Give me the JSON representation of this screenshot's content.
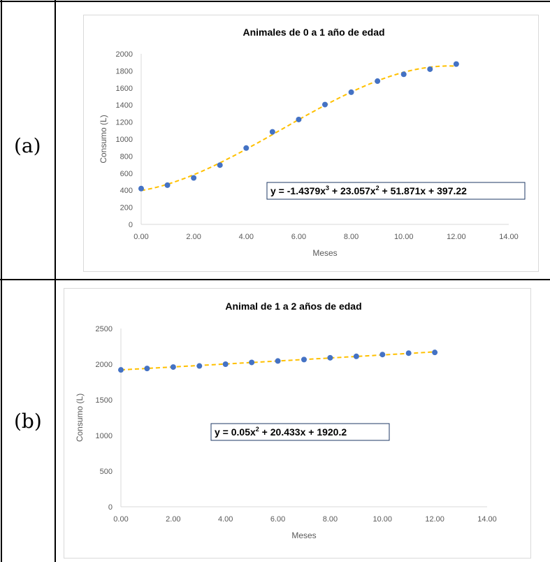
{
  "panels": [
    {
      "label": "(a)"
    },
    {
      "label": "(b)"
    }
  ],
  "colors": {
    "points": "#4472c4",
    "trendline": "#ffc000",
    "axis": "#d9d9d9",
    "text": "#595959"
  },
  "chart_data": [
    {
      "type": "scatter",
      "title": "Animales de 0 a 1 año de edad",
      "xlabel": "Meses",
      "ylabel": "Consumo (L)",
      "xlim": [
        0,
        14
      ],
      "ylim": [
        0,
        2000
      ],
      "x_ticks": [
        "0.00",
        "2.00",
        "4.00",
        "6.00",
        "8.00",
        "10.00",
        "12.00",
        "14.00"
      ],
      "y_ticks": [
        "0",
        "200",
        "400",
        "600",
        "800",
        "1000",
        "1200",
        "1400",
        "1600",
        "1800",
        "2000"
      ],
      "grid": false,
      "x": [
        0,
        1,
        2,
        3,
        4,
        5,
        6,
        7,
        8,
        9,
        10,
        11,
        12
      ],
      "values": [
        420,
        460,
        545,
        695,
        895,
        1085,
        1230,
        1405,
        1550,
        1680,
        1760,
        1820,
        1880
      ],
      "trendline": {
        "type": "polynomial",
        "coefficients": [
          397.22,
          51.871,
          23.057,
          -1.4379
        ]
      },
      "equation": {
        "prefix": "y = -1.4379x",
        "sup1": "3",
        "mid1": " + 23.057x",
        "sup2": "2",
        "suffix": " + 51.871x + 397.22"
      }
    },
    {
      "type": "scatter",
      "title": "Animal de 1 a 2 años de edad",
      "xlabel": "Meses",
      "ylabel": "Consumo (L)",
      "xlim": [
        0,
        14
      ],
      "ylim": [
        0,
        2500
      ],
      "x_ticks": [
        "0.00",
        "2.00",
        "4.00",
        "6.00",
        "8.00",
        "10.00",
        "12.00",
        "14.00"
      ],
      "y_ticks": [
        "0",
        "500",
        "1000",
        "1500",
        "2000",
        "2500"
      ],
      "grid": false,
      "x": [
        0,
        1,
        2,
        3,
        4,
        5,
        6,
        7,
        8,
        9,
        10,
        11,
        12
      ],
      "values": [
        1920,
        1940,
        1960,
        1975,
        2000,
        2025,
        2045,
        2065,
        2090,
        2110,
        2135,
        2155,
        2165
      ],
      "trendline": {
        "type": "polynomial",
        "coefficients": [
          1920.2,
          20.433,
          0.05
        ]
      },
      "equation": {
        "prefix": "y = 0.05x",
        "sup1": "2",
        "mid1": " + 20.433x + 1920.2",
        "sup2": "",
        "suffix": ""
      }
    }
  ]
}
